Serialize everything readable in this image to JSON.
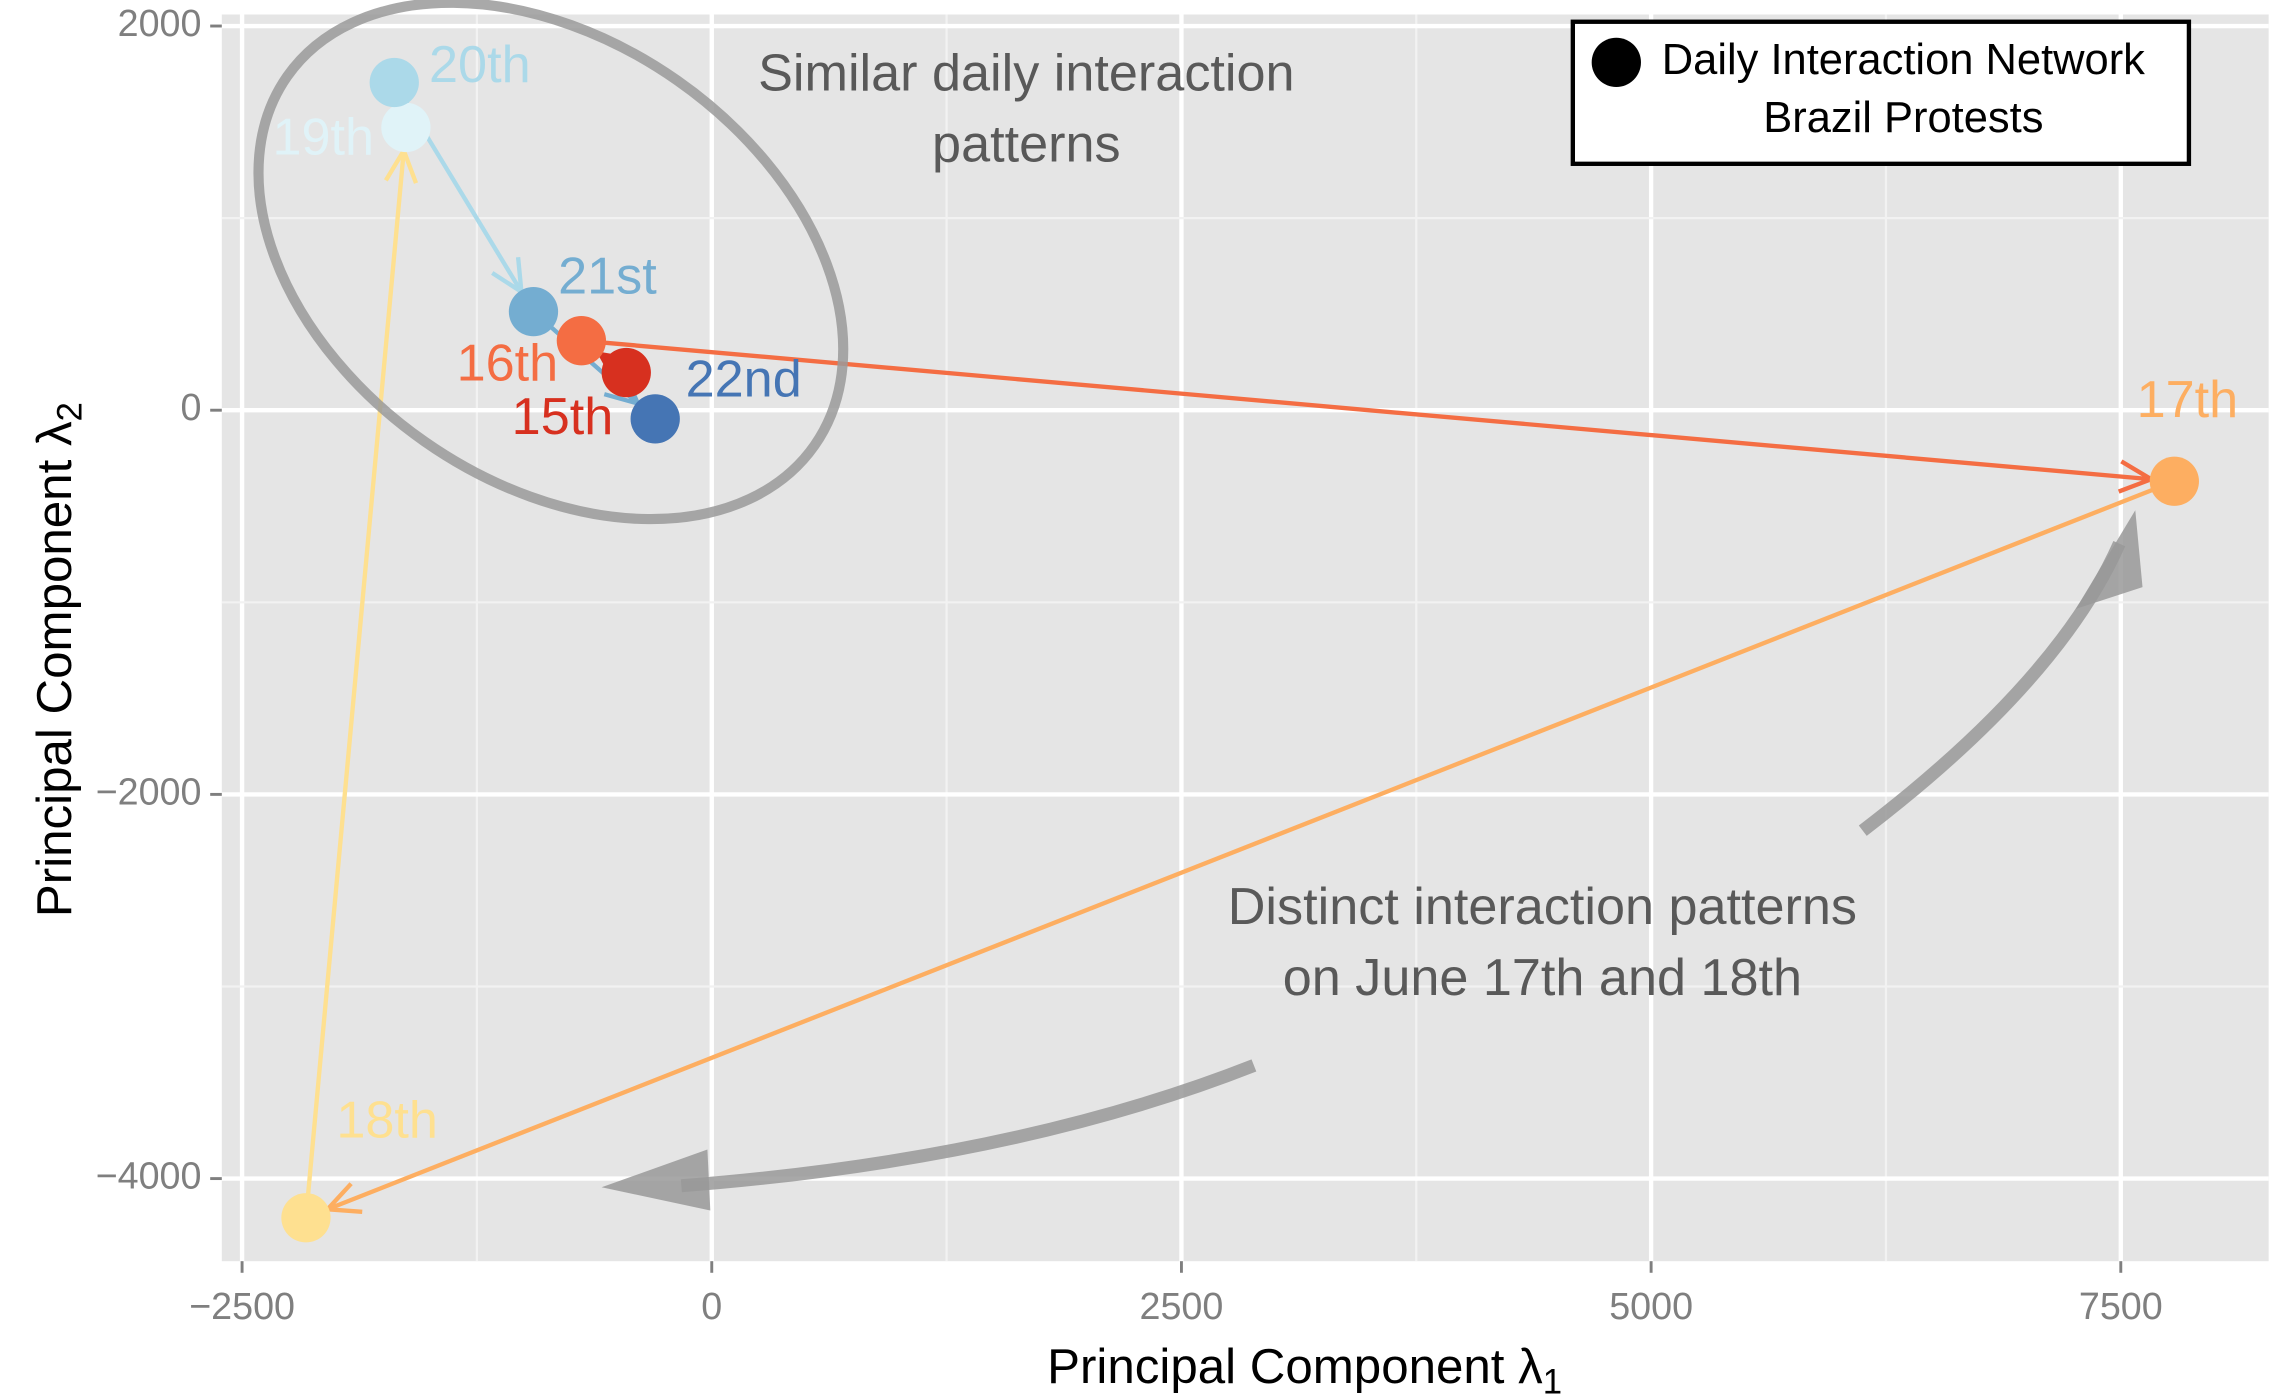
{
  "chart_data": {
    "type": "scatter",
    "x_label": {
      "text": "Principal Component λ",
      "subscript": "1"
    },
    "y_label": {
      "text": "Principal Component λ",
      "subscript": "2"
    },
    "xlim": [
      -2608,
      8287
    ],
    "ylim": [
      -4430,
      2060
    ],
    "xticks": [
      {
        "value": -2500,
        "label": "−2500"
      },
      0,
      2500,
      5000,
      7500
    ],
    "yticks": [
      {
        "value": -4000,
        "label": "−4000"
      },
      {
        "value": -2000,
        "label": "−2000"
      },
      0,
      2000
    ],
    "grid": true,
    "legend": {
      "position": "top-right",
      "lines": [
        "Daily Interaction Network",
        "Brazil Protests"
      ],
      "color": "#000000"
    },
    "points": [
      {
        "label": "15th",
        "x": -455,
        "y": 196,
        "color": "#d7301f"
      },
      {
        "label": "16th",
        "x": -694,
        "y": 362,
        "color": "#f46d43"
      },
      {
        "label": "17th",
        "x": 7785,
        "y": -370,
        "color": "#fdae61"
      },
      {
        "label": "18th",
        "x": -2160,
        "y": -4204,
        "color": "#fee090"
      },
      {
        "label": "19th",
        "x": -1628,
        "y": 1472,
        "color": "#e0f3f8"
      },
      {
        "label": "20th",
        "x": -1690,
        "y": 1706,
        "color": "#abd9e9"
      },
      {
        "label": "21st",
        "x": -949,
        "y": 513,
        "color": "#74add1"
      },
      {
        "label": "22nd",
        "x": -301,
        "y": -45,
        "color": "#4575b4"
      }
    ],
    "annotations": [
      {
        "lines": [
          "Similar daily interaction",
          "patterns"
        ]
      },
      {
        "lines": [
          "Distinct interaction patterns",
          "on June 17th and 18th"
        ]
      }
    ]
  }
}
